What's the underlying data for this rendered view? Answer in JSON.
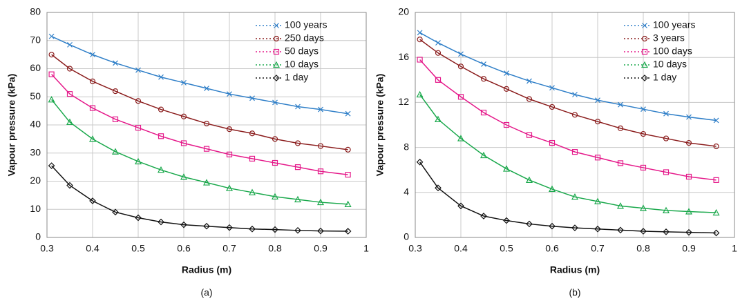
{
  "chart_data": [
    {
      "type": "line",
      "caption": "(a)",
      "x_label": "Radius (m)",
      "y_label": "Vapour pressure (kPa)",
      "xlim": [
        0.3,
        1
      ],
      "xticks": [
        0.3,
        0.4,
        0.5,
        0.6,
        0.7,
        0.8,
        0.9,
        1
      ],
      "ylim": [
        0,
        80
      ],
      "yticks": [
        0,
        10,
        20,
        30,
        40,
        50,
        60,
        70,
        80
      ],
      "grid": true,
      "legend": "top-right",
      "x": [
        0.31,
        0.35,
        0.4,
        0.45,
        0.5,
        0.55,
        0.6,
        0.65,
        0.7,
        0.75,
        0.8,
        0.85,
        0.9,
        0.96
      ],
      "series": [
        {
          "name": "100 years",
          "color": "#2f7fc8",
          "marker": "x",
          "values": [
            71.5,
            68.5,
            65,
            62,
            59.5,
            57,
            55,
            53,
            51,
            49.5,
            48,
            46.5,
            45.5,
            44
          ]
        },
        {
          "name": "250 days",
          "color": "#8b1d1d",
          "marker": "circle",
          "values": [
            65,
            60,
            55.5,
            52,
            48.5,
            45.5,
            43,
            40.5,
            38.5,
            37,
            35,
            33.5,
            32.5,
            31.2
          ]
        },
        {
          "name": "50 days",
          "color": "#e5198a",
          "marker": "square",
          "values": [
            58,
            51,
            46,
            42,
            39,
            36,
            33.5,
            31.5,
            29.5,
            28,
            26.5,
            25,
            23.5,
            22.3
          ]
        },
        {
          "name": "10 days",
          "color": "#19a84b",
          "marker": "triangle",
          "values": [
            49,
            41,
            35,
            30.5,
            27,
            24,
            21.5,
            19.5,
            17.5,
            16,
            14.5,
            13.5,
            12.5,
            11.8
          ]
        },
        {
          "name": "1 day",
          "color": "#111111",
          "marker": "diamond",
          "values": [
            25.5,
            18.5,
            13,
            9,
            7,
            5.5,
            4.5,
            4,
            3.5,
            3,
            2.8,
            2.5,
            2.3,
            2.2
          ]
        }
      ]
    },
    {
      "type": "line",
      "caption": "(b)",
      "x_label": "Radius (m)",
      "y_label": "Vapour pressure (kPa)",
      "xlim": [
        0.3,
        1
      ],
      "xticks": [
        0.3,
        0.4,
        0.5,
        0.6,
        0.7,
        0.8,
        0.9,
        1
      ],
      "ylim": [
        0,
        20
      ],
      "yticks": [
        0,
        4,
        8,
        12,
        16,
        20
      ],
      "grid": true,
      "legend": "top-right",
      "x": [
        0.31,
        0.35,
        0.4,
        0.45,
        0.5,
        0.55,
        0.6,
        0.65,
        0.7,
        0.75,
        0.8,
        0.85,
        0.9,
        0.96
      ],
      "series": [
        {
          "name": "100 years",
          "color": "#2f7fc8",
          "marker": "x",
          "values": [
            18.2,
            17.3,
            16.3,
            15.4,
            14.6,
            13.9,
            13.3,
            12.7,
            12.2,
            11.8,
            11.4,
            11,
            10.7,
            10.4
          ]
        },
        {
          "name": "3 years",
          "color": "#8b1d1d",
          "marker": "circle",
          "values": [
            17.6,
            16.4,
            15.2,
            14.1,
            13.2,
            12.3,
            11.6,
            10.9,
            10.3,
            9.7,
            9.2,
            8.8,
            8.4,
            8.1
          ]
        },
        {
          "name": "100 days",
          "color": "#e5198a",
          "marker": "square",
          "values": [
            15.8,
            14,
            12.5,
            11.1,
            10,
            9.1,
            8.4,
            7.6,
            7.1,
            6.6,
            6.2,
            5.8,
            5.4,
            5.1
          ]
        },
        {
          "name": "10 days",
          "color": "#19a84b",
          "marker": "triangle",
          "values": [
            12.7,
            10.5,
            8.8,
            7.3,
            6.1,
            5.1,
            4.3,
            3.6,
            3.2,
            2.8,
            2.6,
            2.4,
            2.3,
            2.2
          ]
        },
        {
          "name": "1 day",
          "color": "#111111",
          "marker": "diamond",
          "values": [
            6.7,
            4.4,
            2.8,
            1.9,
            1.5,
            1.2,
            1,
            0.85,
            0.75,
            0.65,
            0.55,
            0.5,
            0.45,
            0.4
          ]
        }
      ]
    }
  ]
}
